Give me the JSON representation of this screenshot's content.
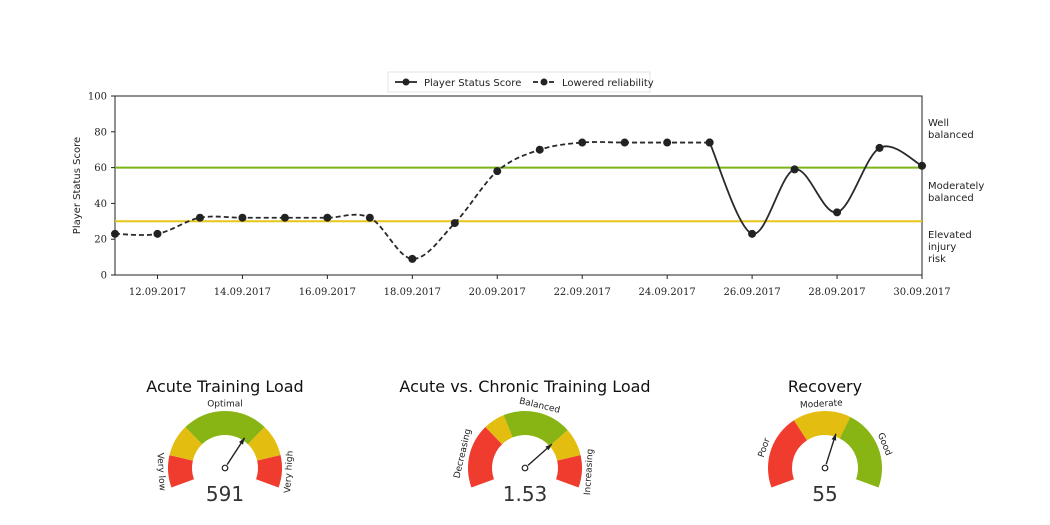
{
  "chart_data": {
    "type": "line",
    "ylabel": "Player Status Score",
    "ylim": [
      0,
      100
    ],
    "yticks": [
      0,
      20,
      40,
      60,
      80,
      100
    ],
    "x_dates": [
      "11.09.2017",
      "12.09.2017",
      "13.09.2017",
      "14.09.2017",
      "15.09.2017",
      "16.09.2017",
      "17.09.2017",
      "18.09.2017",
      "19.09.2017",
      "20.09.2017",
      "21.09.2017",
      "22.09.2017",
      "23.09.2017",
      "24.09.2017",
      "25.09.2017",
      "26.09.2017",
      "27.09.2017",
      "28.09.2017",
      "29.09.2017",
      "30.09.2017"
    ],
    "xtick_labels": [
      "12.09.2017",
      "14.09.2017",
      "16.09.2017",
      "18.09.2017",
      "20.09.2017",
      "22.09.2017",
      "24.09.2017",
      "26.09.2017",
      "28.09.2017",
      "30.09.2017"
    ],
    "legend": {
      "placement": "top-center",
      "entries": [
        "Player Status Score",
        "Lowered reliability"
      ]
    },
    "series": [
      {
        "name": "Lowered reliability",
        "style": "dashed",
        "x": [
          "11.09.2017",
          "12.09.2017",
          "13.09.2017",
          "14.09.2017",
          "15.09.2017",
          "16.09.2017",
          "17.09.2017",
          "18.09.2017",
          "19.09.2017",
          "20.09.2017",
          "21.09.2017",
          "22.09.2017",
          "23.09.2017",
          "24.09.2017",
          "25.09.2017"
        ],
        "values": [
          23,
          23,
          32,
          32,
          32,
          32,
          32,
          9,
          29,
          58,
          70,
          74,
          74,
          74,
          74
        ]
      },
      {
        "name": "Player Status Score",
        "style": "solid",
        "x": [
          "25.09.2017",
          "26.09.2017",
          "27.09.2017",
          "28.09.2017",
          "29.09.2017",
          "30.09.2017"
        ],
        "values": [
          74,
          23,
          59,
          35,
          71,
          61
        ]
      }
    ],
    "thresholds": [
      {
        "value": 60,
        "color": "#7cb518"
      },
      {
        "value": 30,
        "color": "#e6c619"
      }
    ],
    "zones": [
      {
        "lines": [
          "Well",
          "balanced"
        ]
      },
      {
        "lines": [
          "Moderately",
          "balanced"
        ]
      },
      {
        "lines": [
          "Elevated",
          "injury",
          "risk"
        ]
      }
    ]
  },
  "gauges": [
    {
      "title": "Acute Training Load",
      "value_text": "591",
      "needle_fraction": 0.65,
      "segments": [
        {
          "label": "Very low",
          "color": "#f03c2e",
          "from": 0.0,
          "to": 0.15
        },
        {
          "label": "",
          "color": "#e3be10",
          "from": 0.15,
          "to": 0.3
        },
        {
          "label": "Optimal",
          "color": "#88b414",
          "from": 0.3,
          "to": 0.7
        },
        {
          "label": "",
          "color": "#e3be10",
          "from": 0.7,
          "to": 0.85
        },
        {
          "label": "Very high",
          "color": "#f03c2e",
          "from": 0.85,
          "to": 1.0
        }
      ]
    },
    {
      "title": "Acute vs. Chronic Training Load",
      "value_text": "1.53",
      "needle_fraction": 0.72,
      "segments": [
        {
          "label": "Decreasing",
          "color": "#f03c2e",
          "from": 0.0,
          "to": 0.3
        },
        {
          "label": "",
          "color": "#e3be10",
          "from": 0.3,
          "to": 0.4
        },
        {
          "label": "Balanced",
          "color": "#88b414",
          "from": 0.4,
          "to": 0.72
        },
        {
          "label": "",
          "color": "#e3be10",
          "from": 0.72,
          "to": 0.85
        },
        {
          "label": "Increasing",
          "color": "#f03c2e",
          "from": 0.85,
          "to": 1.0
        }
      ]
    },
    {
      "title": "Recovery",
      "value_text": "55",
      "needle_fraction": 0.58,
      "segments": [
        {
          "label": "Poor",
          "color": "#f03c2e",
          "from": 0.0,
          "to": 0.35
        },
        {
          "label": "Moderate",
          "color": "#e3be10",
          "from": 0.35,
          "to": 0.62
        },
        {
          "label": "Good",
          "color": "#88b414",
          "from": 0.62,
          "to": 1.0
        }
      ]
    }
  ]
}
